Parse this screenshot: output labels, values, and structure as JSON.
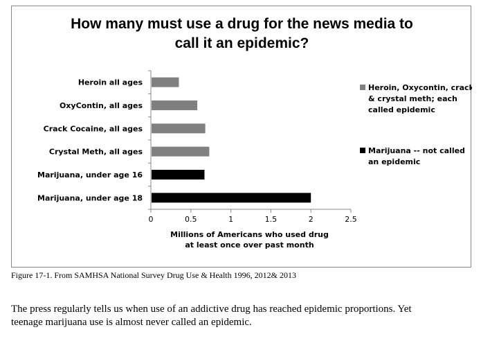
{
  "chart_data": {
    "type": "bar",
    "orientation": "horizontal",
    "title": "How many must use a drug for the news media to call it an epidemic?",
    "title_lines": [
      "How many must use a drug for the news media to",
      "call it an epidemic?"
    ],
    "categories": [
      "Heroin all ages",
      "OxyContin, all ages",
      "Crack Cocaine, all ages",
      "Crystal Meth, all ages",
      "Marijuana, under age 16",
      "Marijuana, under age 18"
    ],
    "values": [
      0.35,
      0.58,
      0.68,
      0.73,
      0.67,
      2.0
    ],
    "bar_group": [
      0,
      0,
      0,
      0,
      1,
      1
    ],
    "series": [
      {
        "name": "Heroin, Oxycontin, crack & crystal meth; each called epidemic",
        "name_lines": [
          "Heroin, Oxycontin, crack",
          "& crystal meth; each",
          "called epidemic"
        ],
        "color": "#808080"
      },
      {
        "name": "Marijuana -- not called an epidemic",
        "name_lines": [
          "Marijuana -- not called",
          "an epidemic"
        ],
        "color": "#000000"
      }
    ],
    "xlabel": "Millions of Americans who used drug at least once over past month",
    "xlabel_lines": [
      "Millions of Americans who used drug",
      "at least once over past month"
    ],
    "ylabel": "",
    "xlim": [
      0,
      2.5
    ],
    "x_ticks": [
      "0",
      "0.5",
      "1",
      "1.5",
      "2",
      "2.5"
    ],
    "grid": false,
    "legend_position": "right"
  },
  "caption": "Figure 17-1.  From SAMHSA National Survey Drug Use & Health 1996, 2012& 2013",
  "body_text": {
    "line1": "The press regularly tells us when use of an addictive drug has reached epidemic proportions. Yet",
    "line2": "teenage marijuana use is almost never called an epidemic."
  }
}
